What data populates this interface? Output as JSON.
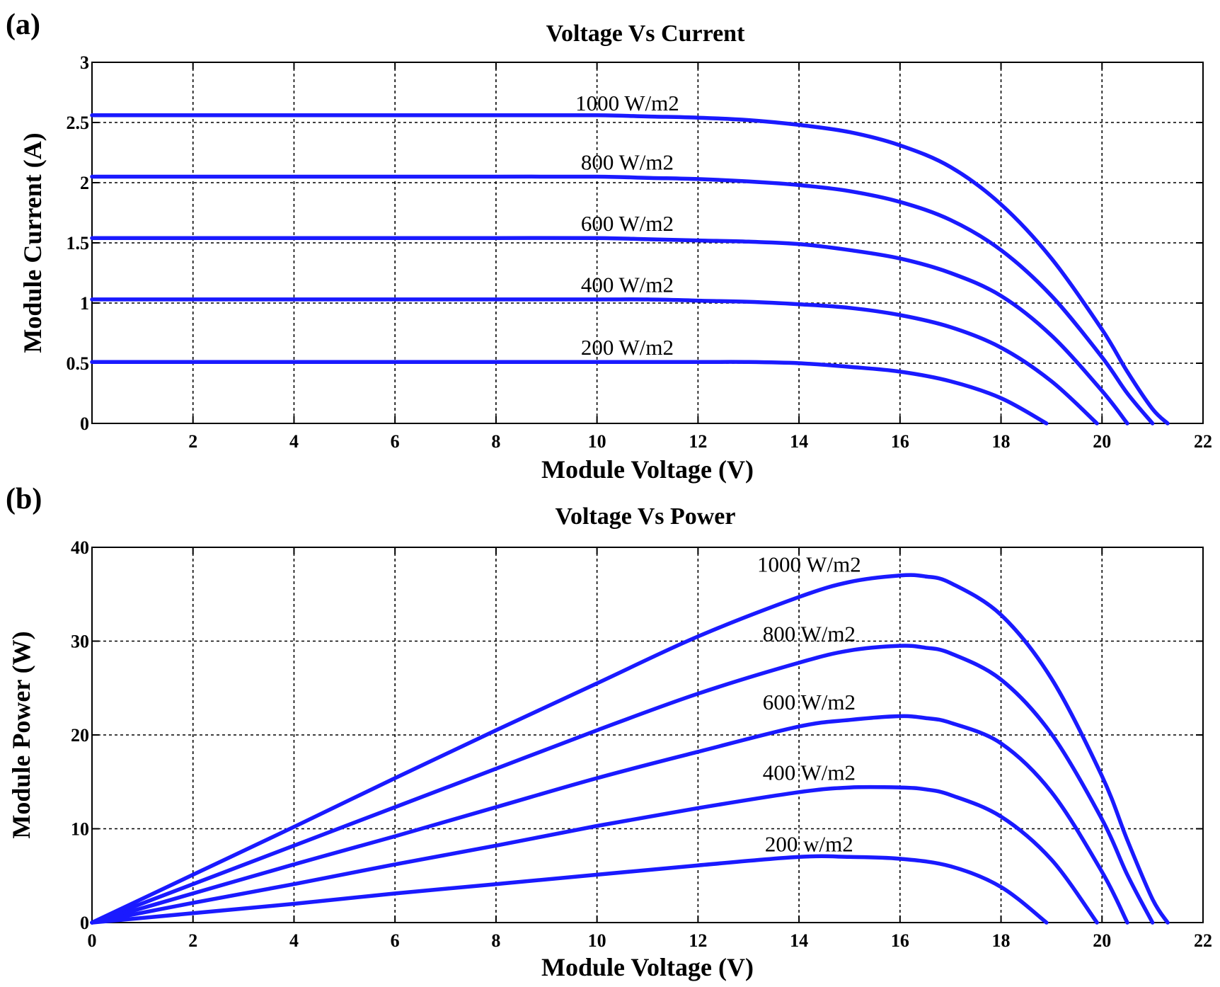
{
  "series_color": "#1a1aff",
  "chart_data": [
    {
      "panel": "(a)",
      "type": "line",
      "title": "Voltage Vs Current",
      "xlabel": "Module Voltage (V)",
      "ylabel": "Module Current (A)",
      "xlim": [
        0,
        22
      ],
      "ylim": [
        0,
        3
      ],
      "grid": true,
      "xticks": [
        2,
        4,
        6,
        8,
        10,
        12,
        14,
        16,
        18,
        20,
        22
      ],
      "xtick_labels": [
        "2",
        "4",
        "6",
        "8",
        "10",
        "12",
        "14",
        "16",
        "18",
        "20",
        "22"
      ],
      "yticks": [
        0,
        0.5,
        1,
        1.5,
        2,
        2.5,
        3
      ],
      "ytick_labels": [
        "0",
        "0.5",
        "1",
        "1.5",
        "2",
        "2.5",
        "3"
      ],
      "series": [
        {
          "name": "1000 W/m2",
          "label": "1000 W/m2",
          "label_at": [
            10.6,
            2.6
          ],
          "x": [
            0,
            2,
            4,
            6,
            8,
            10,
            11,
            12,
            13,
            14,
            15,
            16,
            17,
            18,
            19,
            20,
            20.5,
            21,
            21.3
          ],
          "y": [
            2.56,
            2.56,
            2.56,
            2.56,
            2.56,
            2.56,
            2.55,
            2.54,
            2.52,
            2.48,
            2.42,
            2.31,
            2.13,
            1.82,
            1.37,
            0.78,
            0.43,
            0.12,
            0
          ]
        },
        {
          "name": "800 W/m2",
          "label": "800 W/m2",
          "label_at": [
            10.6,
            2.11
          ],
          "x": [
            0,
            2,
            4,
            6,
            8,
            10,
            11,
            12,
            13,
            14,
            15,
            16,
            17,
            18,
            19,
            20,
            20.5,
            21
          ],
          "y": [
            2.05,
            2.05,
            2.05,
            2.05,
            2.05,
            2.05,
            2.04,
            2.03,
            2.01,
            1.98,
            1.93,
            1.84,
            1.69,
            1.44,
            1.06,
            0.55,
            0.25,
            0
          ]
        },
        {
          "name": "600 W/m2",
          "label": "600 W/m2",
          "label_at": [
            10.6,
            1.6
          ],
          "x": [
            0,
            2,
            4,
            6,
            8,
            10,
            11,
            12,
            13,
            14,
            15,
            16,
            17,
            18,
            19,
            20,
            20.5
          ],
          "y": [
            1.54,
            1.54,
            1.54,
            1.54,
            1.54,
            1.54,
            1.53,
            1.52,
            1.51,
            1.49,
            1.44,
            1.37,
            1.25,
            1.06,
            0.73,
            0.27,
            0
          ]
        },
        {
          "name": "400 W/m2",
          "label": "400 W/m2",
          "label_at": [
            10.6,
            1.09
          ],
          "x": [
            0,
            2,
            4,
            6,
            8,
            10,
            11,
            12,
            13,
            14,
            15,
            16,
            17,
            18,
            19,
            19.9
          ],
          "y": [
            1.03,
            1.03,
            1.03,
            1.03,
            1.03,
            1.03,
            1.03,
            1.02,
            1.01,
            0.99,
            0.96,
            0.9,
            0.8,
            0.63,
            0.35,
            0
          ]
        },
        {
          "name": "200 W/m2",
          "label": "200 W/m2",
          "label_at": [
            10.6,
            0.57
          ],
          "x": [
            0,
            2,
            4,
            6,
            8,
            10,
            11,
            12,
            13,
            14,
            15,
            16,
            17,
            18,
            18.9
          ],
          "y": [
            0.51,
            0.51,
            0.51,
            0.51,
            0.51,
            0.51,
            0.51,
            0.51,
            0.51,
            0.5,
            0.47,
            0.43,
            0.35,
            0.21,
            0
          ]
        }
      ]
    },
    {
      "panel": "(b)",
      "type": "line",
      "title": "Voltage Vs Power",
      "xlabel": "Module Voltage (V)",
      "ylabel": "Module Power (W)",
      "xlim": [
        0,
        22
      ],
      "ylim": [
        0,
        40
      ],
      "grid": true,
      "xticks": [
        0,
        2,
        4,
        6,
        8,
        10,
        12,
        14,
        16,
        18,
        20,
        22
      ],
      "xtick_labels": [
        "0",
        "2",
        "4",
        "6",
        "8",
        "10",
        "12",
        "14",
        "16",
        "18",
        "20",
        "22"
      ],
      "yticks": [
        0,
        10,
        20,
        30,
        40
      ],
      "ytick_labels": [
        "0",
        "10",
        "20",
        "30",
        "40"
      ],
      "series": [
        {
          "name": "1000 W/m2",
          "label": "1000 W/m2",
          "label_at": [
            14.2,
            37.4
          ],
          "x": [
            0,
            2,
            4,
            6,
            8,
            10,
            12,
            14,
            15,
            16,
            16.5,
            17,
            18,
            19,
            20,
            20.5,
            21,
            21.3
          ],
          "y": [
            0,
            5.1,
            10.2,
            15.4,
            20.5,
            25.5,
            30.5,
            34.7,
            36.3,
            37.0,
            36.9,
            36.2,
            32.8,
            26.0,
            15.6,
            8.8,
            2.5,
            0
          ]
        },
        {
          "name": "800 W/m2",
          "label": "800 W/m2",
          "label_at": [
            14.2,
            30.0
          ],
          "x": [
            0,
            2,
            4,
            6,
            8,
            10,
            12,
            14,
            15,
            16,
            16.5,
            17,
            18,
            19,
            20,
            20.5,
            21
          ],
          "y": [
            0,
            4.1,
            8.2,
            12.3,
            16.4,
            20.5,
            24.4,
            27.7,
            29.0,
            29.5,
            29.3,
            28.7,
            25.9,
            20.1,
            11.0,
            5.1,
            0
          ]
        },
        {
          "name": "600 W/m2",
          "label": "600 W/m2",
          "label_at": [
            14.2,
            22.7
          ],
          "x": [
            0,
            2,
            4,
            6,
            8,
            10,
            12,
            14,
            15,
            16,
            16.5,
            17,
            18,
            19,
            20,
            20.5
          ],
          "y": [
            0,
            3.1,
            6.2,
            9.2,
            12.3,
            15.4,
            18.2,
            20.9,
            21.6,
            22.0,
            21.8,
            21.3,
            19.1,
            13.9,
            5.4,
            0
          ]
        },
        {
          "name": "400 W/m2",
          "label": "400 W/m2",
          "label_at": [
            14.2,
            15.2
          ],
          "x": [
            0,
            2,
            4,
            6,
            8,
            10,
            12,
            14,
            15,
            16,
            16.5,
            17,
            18,
            19,
            19.9
          ],
          "y": [
            0,
            2.1,
            4.1,
            6.2,
            8.2,
            10.3,
            12.2,
            13.9,
            14.4,
            14.4,
            14.2,
            13.6,
            11.3,
            6.7,
            0
          ]
        },
        {
          "name": "200 w/m2",
          "label": "200 w/m2",
          "label_at": [
            14.2,
            7.6
          ],
          "x": [
            0,
            2,
            4,
            6,
            8,
            10,
            12,
            14,
            15,
            16,
            17,
            18,
            18.9
          ],
          "y": [
            0,
            1.0,
            2.0,
            3.1,
            4.1,
            5.1,
            6.1,
            7.0,
            7.0,
            6.8,
            6.0,
            3.8,
            0
          ]
        }
      ]
    }
  ]
}
